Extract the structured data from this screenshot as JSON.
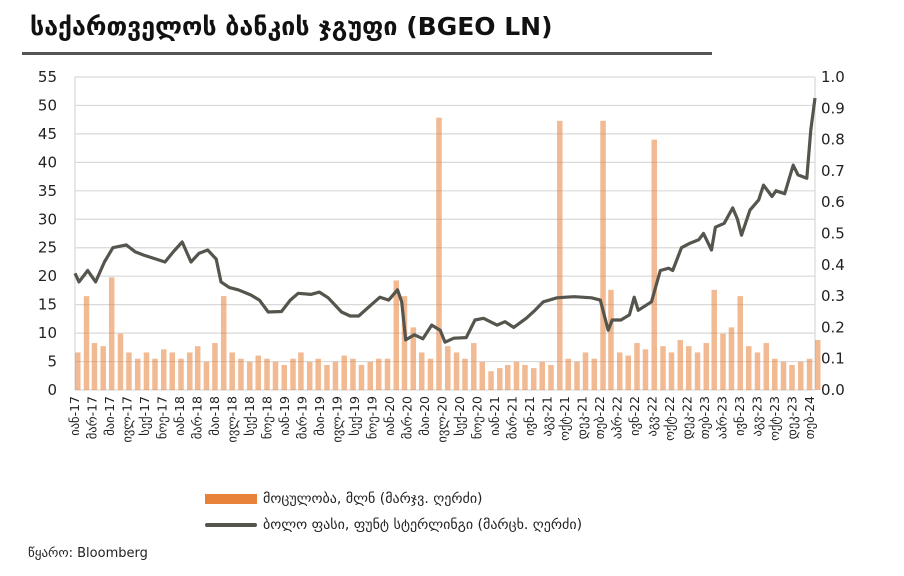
{
  "title": "საქართველოს ბანკის ჯგუფი (BGEO LN)",
  "source": "წყარო: Bloomberg",
  "colors": {
    "volume": "#E8823A",
    "price": "#55554d",
    "grid": "#d9d9d9",
    "rule": "#555555"
  },
  "chart_data": {
    "type": "bar+line",
    "title": "საქართველოს ბანკის ჯგუფი (BGEO LN)",
    "grid": true,
    "legend_placement": "bottom",
    "x_range": [
      "2017-01-01",
      "2024-03-01"
    ],
    "left_axis": {
      "range": [
        0,
        55
      ],
      "ticks": [
        "0",
        "5",
        "10",
        "15",
        "20",
        "25",
        "30",
        "35",
        "40",
        "45",
        "50",
        "55"
      ]
    },
    "right_axis": {
      "range": [
        0,
        1.0
      ],
      "ticks": [
        "0.0",
        "0.1",
        "0.2",
        "0.3",
        "0.4",
        "0.5",
        "0.6",
        "0.7",
        "0.8",
        "0.9",
        "1.0"
      ]
    },
    "x_tick_labels": [
      "იან-17",
      "მარ-17",
      "მაი-17",
      "ივლ-17",
      "სექ-17",
      "ნოე-17",
      "იან-18",
      "მარ-18",
      "მაი-18",
      "ივლ-18",
      "სექ-18",
      "ნოე-18",
      "იან-19",
      "მარ-19",
      "მაი-19",
      "ივლ-19",
      "სექ-19",
      "ნოე-19",
      "იან-20",
      "მარ-20",
      "მაი-20",
      "ივლ-20",
      "სექ-20",
      "ნოე-20",
      "იან-21",
      "მარ-21",
      "ივნ-21",
      "აგვ-21",
      "ოქტ-21",
      "დეკ-21",
      "თებ-22",
      "აპრ-22",
      "ივნ-22",
      "აგვ-22",
      "ოქტ-22",
      "დეკ-22",
      "თებ-23",
      "აპრ-23",
      "ივნ-23",
      "აგვ-23",
      "ოქტ-23",
      "დეკ-23",
      "თებ-24"
    ],
    "series": [
      {
        "name": "მოცულობა, მლნ (მარჯვ. ღერძი)",
        "type": "bar",
        "axis": "right",
        "start_month": "2017-01",
        "values": [
          0.12,
          0.3,
          0.15,
          0.14,
          0.36,
          0.18,
          0.12,
          0.1,
          0.12,
          0.1,
          0.13,
          0.12,
          0.1,
          0.12,
          0.14,
          0.09,
          0.15,
          0.3,
          0.12,
          0.1,
          0.09,
          0.11,
          0.1,
          0.09,
          0.08,
          0.1,
          0.12,
          0.09,
          0.1,
          0.08,
          0.09,
          0.11,
          0.1,
          0.08,
          0.09,
          0.1,
          0.1,
          0.35,
          0.3,
          0.2,
          0.12,
          0.1,
          0.87,
          0.14,
          0.12,
          0.1,
          0.15,
          0.09,
          0.06,
          0.07,
          0.08,
          0.09,
          0.08,
          0.07,
          0.09,
          0.08,
          0.86,
          0.1,
          0.09,
          0.12,
          0.1,
          0.86,
          0.32,
          0.12,
          0.11,
          0.15,
          0.13,
          0.8,
          0.14,
          0.12,
          0.16,
          0.14,
          0.12,
          0.15,
          0.32,
          0.18,
          0.2,
          0.3,
          0.14,
          0.12,
          0.15,
          0.1,
          0.09,
          0.08,
          0.09,
          0.1,
          0.16
        ]
      },
      {
        "name": "ბოლო ფასი, ფუნტ სტერლინგი (მარცხ. ღერძი)",
        "type": "line",
        "axis": "left",
        "points": [
          [
            "2017-01-01",
            20.5
          ],
          [
            "2017-01-15",
            19
          ],
          [
            "2017-02-15",
            21
          ],
          [
            "2017-03-15",
            19
          ],
          [
            "2017-04-15",
            22.5
          ],
          [
            "2017-05-15",
            25
          ],
          [
            "2017-07-01",
            25.5
          ],
          [
            "2017-08-01",
            24.3
          ],
          [
            "2017-09-01",
            23.7
          ],
          [
            "2017-10-15",
            23
          ],
          [
            "2017-11-15",
            22.5
          ],
          [
            "2017-12-15",
            24.3
          ],
          [
            "2018-01-15",
            26
          ],
          [
            "2018-02-15",
            22.5
          ],
          [
            "2018-03-15",
            24
          ],
          [
            "2018-04-15",
            24.6
          ],
          [
            "2018-05-15",
            23
          ],
          [
            "2018-06-01",
            19
          ],
          [
            "2018-07-01",
            18
          ],
          [
            "2018-08-01",
            17.6
          ],
          [
            "2018-09-15",
            16.7
          ],
          [
            "2018-10-15",
            15.8
          ],
          [
            "2018-11-15",
            13.7
          ],
          [
            "2019-01-01",
            13.8
          ],
          [
            "2019-02-01",
            15.8
          ],
          [
            "2019-03-01",
            17
          ],
          [
            "2019-04-15",
            16.8
          ],
          [
            "2019-05-15",
            17.2
          ],
          [
            "2019-06-15",
            16.2
          ],
          [
            "2019-08-01",
            13.7
          ],
          [
            "2019-09-01",
            13
          ],
          [
            "2019-10-01",
            13
          ],
          [
            "2019-11-15",
            15
          ],
          [
            "2019-12-15",
            16.3
          ],
          [
            "2020-01-15",
            15.8
          ],
          [
            "2020-02-15",
            17.6
          ],
          [
            "2020-03-01",
            15.5
          ],
          [
            "2020-03-15",
            8.8
          ],
          [
            "2020-04-15",
            9.7
          ],
          [
            "2020-05-15",
            9
          ],
          [
            "2020-06-15",
            11.4
          ],
          [
            "2020-07-15",
            10.5
          ],
          [
            "2020-08-01",
            8.4
          ],
          [
            "2020-09-01",
            9.1
          ],
          [
            "2020-10-15",
            9.2
          ],
          [
            "2020-11-15",
            12.3
          ],
          [
            "2020-12-15",
            12.6
          ],
          [
            "2021-02-01",
            11.4
          ],
          [
            "2021-03-01",
            12
          ],
          [
            "2021-04-01",
            11
          ],
          [
            "2021-05-15",
            12.6
          ],
          [
            "2021-06-15",
            14
          ],
          [
            "2021-07-15",
            15.5
          ],
          [
            "2021-09-01",
            16.2
          ],
          [
            "2021-10-01",
            16.3
          ],
          [
            "2021-11-01",
            16.4
          ],
          [
            "2022-01-01",
            16.2
          ],
          [
            "2022-02-01",
            15.8
          ],
          [
            "2022-03-01",
            10.5
          ],
          [
            "2022-03-15",
            12.3
          ],
          [
            "2022-04-15",
            12.3
          ],
          [
            "2022-05-15",
            13.2
          ],
          [
            "2022-06-01",
            16.3
          ],
          [
            "2022-06-15",
            14
          ],
          [
            "2022-08-01",
            15.5
          ],
          [
            "2022-09-01",
            21
          ],
          [
            "2022-10-01",
            21.4
          ],
          [
            "2022-10-15",
            21
          ],
          [
            "2022-11-15",
            25
          ],
          [
            "2022-12-15",
            25.8
          ],
          [
            "2023-01-15",
            26.4
          ],
          [
            "2023-02-01",
            27.5
          ],
          [
            "2023-03-01",
            24.6
          ],
          [
            "2023-03-15",
            28.6
          ],
          [
            "2023-04-15",
            29.3
          ],
          [
            "2023-05-15",
            32
          ],
          [
            "2023-06-01",
            30
          ],
          [
            "2023-06-15",
            27.2
          ],
          [
            "2023-07-15",
            31.6
          ],
          [
            "2023-08-15",
            33.4
          ],
          [
            "2023-09-01",
            36
          ],
          [
            "2023-10-01",
            34
          ],
          [
            "2023-10-15",
            35
          ],
          [
            "2023-11-15",
            34.5
          ],
          [
            "2023-12-15",
            39.5
          ],
          [
            "2024-01-01",
            37.8
          ],
          [
            "2024-02-01",
            37.2
          ],
          [
            "2024-02-15",
            45.7
          ],
          [
            "2024-03-01",
            51.3
          ]
        ]
      }
    ]
  }
}
